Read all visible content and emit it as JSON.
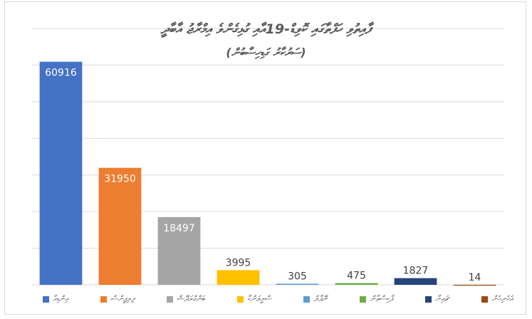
{
  "chart_data": {
    "type": "bar",
    "title": "ފާއިތުވި ހަފްތާގައި ކޮވިޑް-19އާއި ގުޅިގެންވެ އިމްރާޖު އާބާދީ",
    "subtitle": "(ސަރުކާރު ގަޑިހިސާބުން)",
    "categories": [
      "އިންޑިއާ",
      "ފިލިޕީންސް",
      "ބަންގްލަދޭޝް",
      "ސްރީލަންކާ",
      "ނޭޕާލް",
      "ޕާކިސްތާން",
      "ޗައިނާ",
      "އެހެނިހެން"
    ],
    "values": [
      60916,
      31950,
      18497,
      3995,
      305,
      475,
      1827,
      14
    ],
    "colors": [
      "#4472c4",
      "#ed7d31",
      "#a5a5a5",
      "#ffc000",
      "#5b9bd5",
      "#70ad47",
      "#264478",
      "#9e480e"
    ],
    "value_label_colors": [
      "#ffffff",
      "#ffffff",
      "#ffffff",
      "#404040",
      "#404040",
      "#404040",
      "#404040",
      "#404040"
    ],
    "ylim": [
      0,
      70000
    ],
    "grid": true,
    "legend_position": "bottom"
  }
}
